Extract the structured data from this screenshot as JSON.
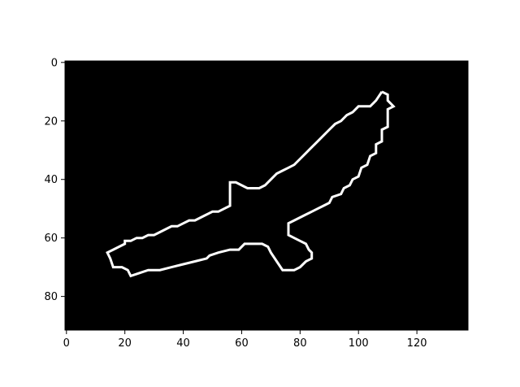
{
  "chart_data": {
    "type": "heatmap",
    "title": "",
    "xlabel": "",
    "ylabel": "",
    "colormap": "gray",
    "background_color": "#000000",
    "foreground_color": "#ffffff",
    "image_shape": [
      92,
      138
    ],
    "xlim": [
      -0.5,
      137.5
    ],
    "ylim": [
      91.5,
      -0.5
    ],
    "y_axis_inverted": true,
    "xticks": [
      0,
      20,
      40,
      60,
      80,
      100,
      120
    ],
    "xtick_labels": [
      "0",
      "20",
      "40",
      "60",
      "80",
      "100",
      "120"
    ],
    "yticks": [
      0,
      20,
      40,
      60,
      80
    ],
    "ytick_labels": [
      "0",
      "20",
      "40",
      "60",
      "80"
    ],
    "grid": false,
    "outline_pixels": [
      [
        108,
        10
      ],
      [
        110,
        11
      ],
      [
        110,
        13
      ],
      [
        112,
        15
      ],
      [
        110,
        16
      ],
      [
        110,
        22
      ],
      [
        108,
        23
      ],
      [
        108,
        27
      ],
      [
        106,
        28
      ],
      [
        106,
        31
      ],
      [
        104,
        32
      ],
      [
        103,
        35
      ],
      [
        101,
        36
      ],
      [
        100,
        39
      ],
      [
        98,
        40
      ],
      [
        97,
        42
      ],
      [
        95,
        43
      ],
      [
        94,
        45
      ],
      [
        91,
        46
      ],
      [
        90,
        48
      ],
      [
        88,
        49
      ],
      [
        86,
        50
      ],
      [
        84,
        51
      ],
      [
        82,
        52
      ],
      [
        80,
        53
      ],
      [
        78,
        54
      ],
      [
        76,
        55
      ],
      [
        76,
        59
      ],
      [
        78,
        60
      ],
      [
        80,
        61
      ],
      [
        82,
        62
      ],
      [
        83,
        64
      ],
      [
        84,
        65
      ],
      [
        84,
        67
      ],
      [
        82,
        68
      ],
      [
        80,
        70
      ],
      [
        78,
        71
      ],
      [
        76,
        71
      ],
      [
        74,
        71
      ],
      [
        72,
        68
      ],
      [
        70,
        65
      ],
      [
        69,
        63
      ],
      [
        67,
        62
      ],
      [
        64,
        62
      ],
      [
        61,
        62
      ],
      [
        59,
        64
      ],
      [
        56,
        64
      ],
      [
        52,
        65
      ],
      [
        49,
        66
      ],
      [
        48,
        67
      ],
      [
        44,
        68
      ],
      [
        40,
        69
      ],
      [
        36,
        70
      ],
      [
        32,
        71
      ],
      [
        28,
        71
      ],
      [
        25,
        72
      ],
      [
        22,
        73
      ],
      [
        21,
        71
      ],
      [
        19,
        70
      ],
      [
        16,
        70
      ],
      [
        15,
        67
      ],
      [
        14,
        65
      ],
      [
        16,
        64
      ],
      [
        18,
        63
      ],
      [
        20,
        62
      ],
      [
        20,
        61
      ],
      [
        22,
        61
      ],
      [
        24,
        60
      ],
      [
        26,
        60
      ],
      [
        28,
        59
      ],
      [
        30,
        59
      ],
      [
        32,
        58
      ],
      [
        34,
        57
      ],
      [
        36,
        56
      ],
      [
        38,
        56
      ],
      [
        40,
        55
      ],
      [
        42,
        54
      ],
      [
        44,
        54
      ],
      [
        46,
        53
      ],
      [
        48,
        52
      ],
      [
        50,
        51
      ],
      [
        52,
        51
      ],
      [
        54,
        50
      ],
      [
        56,
        49
      ],
      [
        56,
        48
      ],
      [
        56,
        46
      ],
      [
        56,
        44
      ],
      [
        56,
        42
      ],
      [
        56,
        41
      ],
      [
        58,
        41
      ],
      [
        60,
        42
      ],
      [
        62,
        43
      ],
      [
        64,
        43
      ],
      [
        66,
        43
      ],
      [
        68,
        42
      ],
      [
        70,
        40
      ],
      [
        72,
        38
      ],
      [
        74,
        37
      ],
      [
        76,
        36
      ],
      [
        78,
        35
      ],
      [
        80,
        33
      ],
      [
        82,
        31
      ],
      [
        84,
        29
      ],
      [
        86,
        27
      ],
      [
        88,
        25
      ],
      [
        90,
        23
      ],
      [
        92,
        21
      ],
      [
        94,
        20
      ],
      [
        96,
        18
      ],
      [
        98,
        17
      ],
      [
        100,
        15
      ],
      [
        102,
        15
      ],
      [
        104,
        15
      ],
      [
        106,
        13
      ],
      [
        108,
        10
      ]
    ]
  }
}
